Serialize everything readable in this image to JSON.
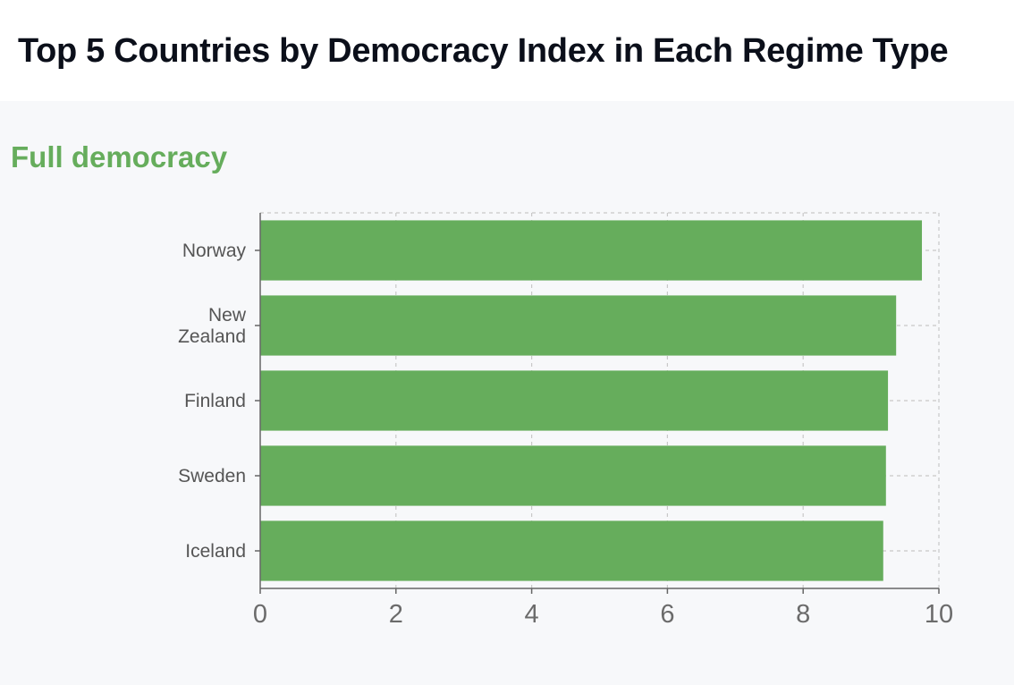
{
  "page": {
    "title": "Top 5 Countries by Democracy Index in Each Regime Type"
  },
  "panel": {
    "title": "Full democracy"
  },
  "chart_data": {
    "type": "bar",
    "orientation": "horizontal",
    "title": "Full democracy",
    "categories": [
      "Norway",
      "New Zealand",
      "Finland",
      "Sweden",
      "Iceland"
    ],
    "category_label_lines": [
      [
        "Norway"
      ],
      [
        "New",
        "Zealand"
      ],
      [
        "Finland"
      ],
      [
        "Sweden"
      ],
      [
        "Iceland"
      ]
    ],
    "values": [
      9.75,
      9.37,
      9.25,
      9.22,
      9.18
    ],
    "xlim": [
      0,
      10
    ],
    "xticks": [
      0,
      2,
      4,
      6,
      8,
      10
    ],
    "xlabel": "",
    "ylabel": "",
    "grid": true,
    "colors": {
      "bar": "#66ad5c",
      "title": "#66ad5c",
      "grid": "#c8c8c8",
      "axis": "#666666"
    }
  }
}
